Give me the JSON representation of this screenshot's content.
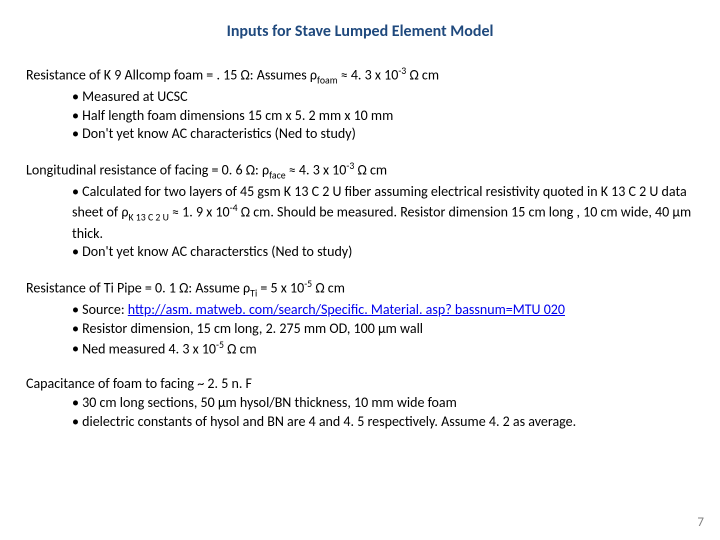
{
  "title": "Inputs for Stave Lumped Element Model",
  "section1": {
    "lead_pre": "Resistance of K 9 Allcomp foam = . 15 Ω: Assumes ρ",
    "lead_sub": "foam",
    "lead_mid": " ≈ 4. 3 x 10",
    "lead_sup": "-3",
    "lead_post": " Ω cm",
    "b1": "Measured at UCSC",
    "b2": "Half length foam dimensions 15 cm x 5. 2 mm x 10 mm",
    "b3": "Don't yet know AC characteristics (Ned to study)"
  },
  "section2": {
    "lead_pre": "Longitudinal resistance of facing = 0. 6 Ω: ρ",
    "lead_sub": "face",
    "lead_mid": " ≈ 4. 3 x 10",
    "lead_sup": "-3",
    "lead_post": " Ω cm",
    "b1_pre": "Calculated for two layers of 45 gsm K 13 C 2 U fiber assuming electrical resistivity quoted in K 13 C 2 U data sheet of ρ",
    "b1_sub": "K 13 C 2 U",
    "b1_mid": " ≈ 1. 9 x 10",
    "b1_sup": "-4",
    "b1_post": " Ω cm. Should be measured. Resistor dimension 15 cm long , 10 cm wide, 40 μm thick.",
    "b2": "Don't yet know AC characterstics (Ned to study)"
  },
  "section3": {
    "lead_pre": "Resistance of Ti Pipe = 0. 1 Ω: Assume ρ",
    "lead_sub": "Ti",
    "lead_mid": " = 5 x 10",
    "lead_sup": "-5",
    "lead_post": " Ω cm",
    "b1_pre": "Source: ",
    "b1_link": "http://asm. matweb. com/search/Specific. Material. asp? bassnum=MTU 020",
    "b2": "Resistor dimension, 15 cm long, 2. 275 mm OD, 100 μm wall",
    "b3_pre": "Ned measured 4. 3 x 10",
    "b3_sup": "-5",
    "b3_post": " Ω cm"
  },
  "section4": {
    "lead": "Capacitance of foam to facing ~ 2. 5 n. F",
    "b1": "30 cm long sections, 50 μm hysol/BN thickness, 10 mm wide foam",
    "b2": "dielectric constants of hysol and BN are 4 and 4. 5 respectively. Assume 4. 2 as average."
  },
  "pagenum": "7"
}
